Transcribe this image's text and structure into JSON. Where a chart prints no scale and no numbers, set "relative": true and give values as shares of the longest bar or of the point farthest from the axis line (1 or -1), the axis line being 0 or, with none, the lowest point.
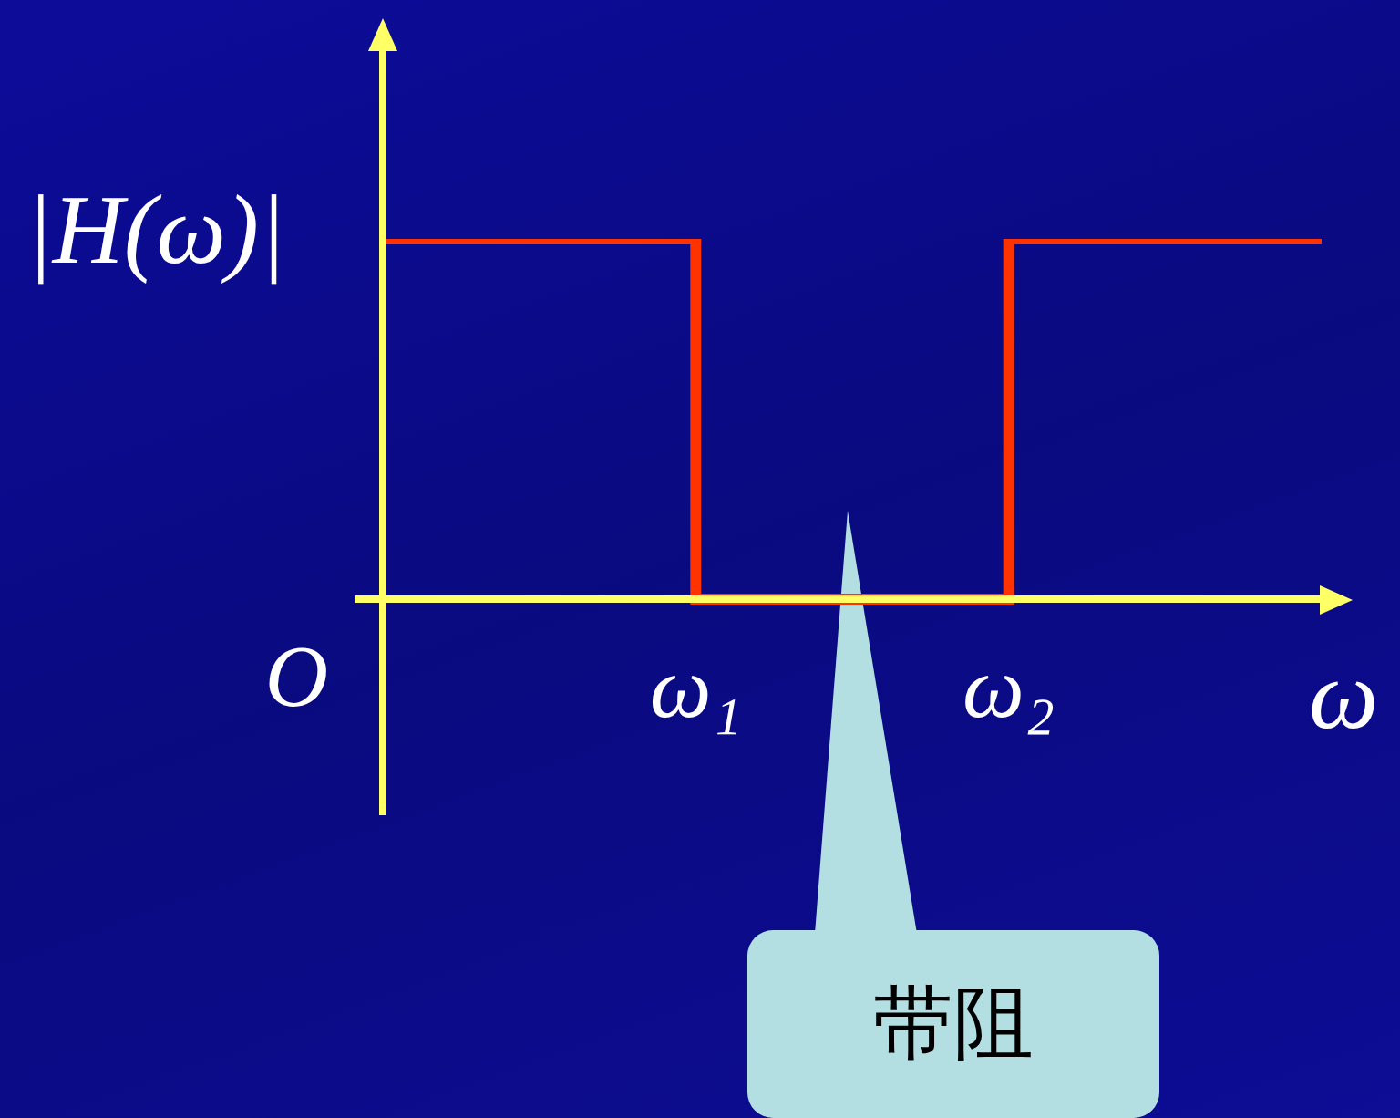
{
  "chart_data": {
    "type": "step",
    "relative": true,
    "xlabel": "ω",
    "ylabel": "|H(ω)|",
    "categories": [
      null,
      "ω₁",
      "ω₂",
      null
    ],
    "values": [
      1,
      0,
      1,
      1
    ],
    "color": "#ff3300",
    "marker": "none",
    "annotations": [
      "O",
      "带阻"
    ]
  }
}
